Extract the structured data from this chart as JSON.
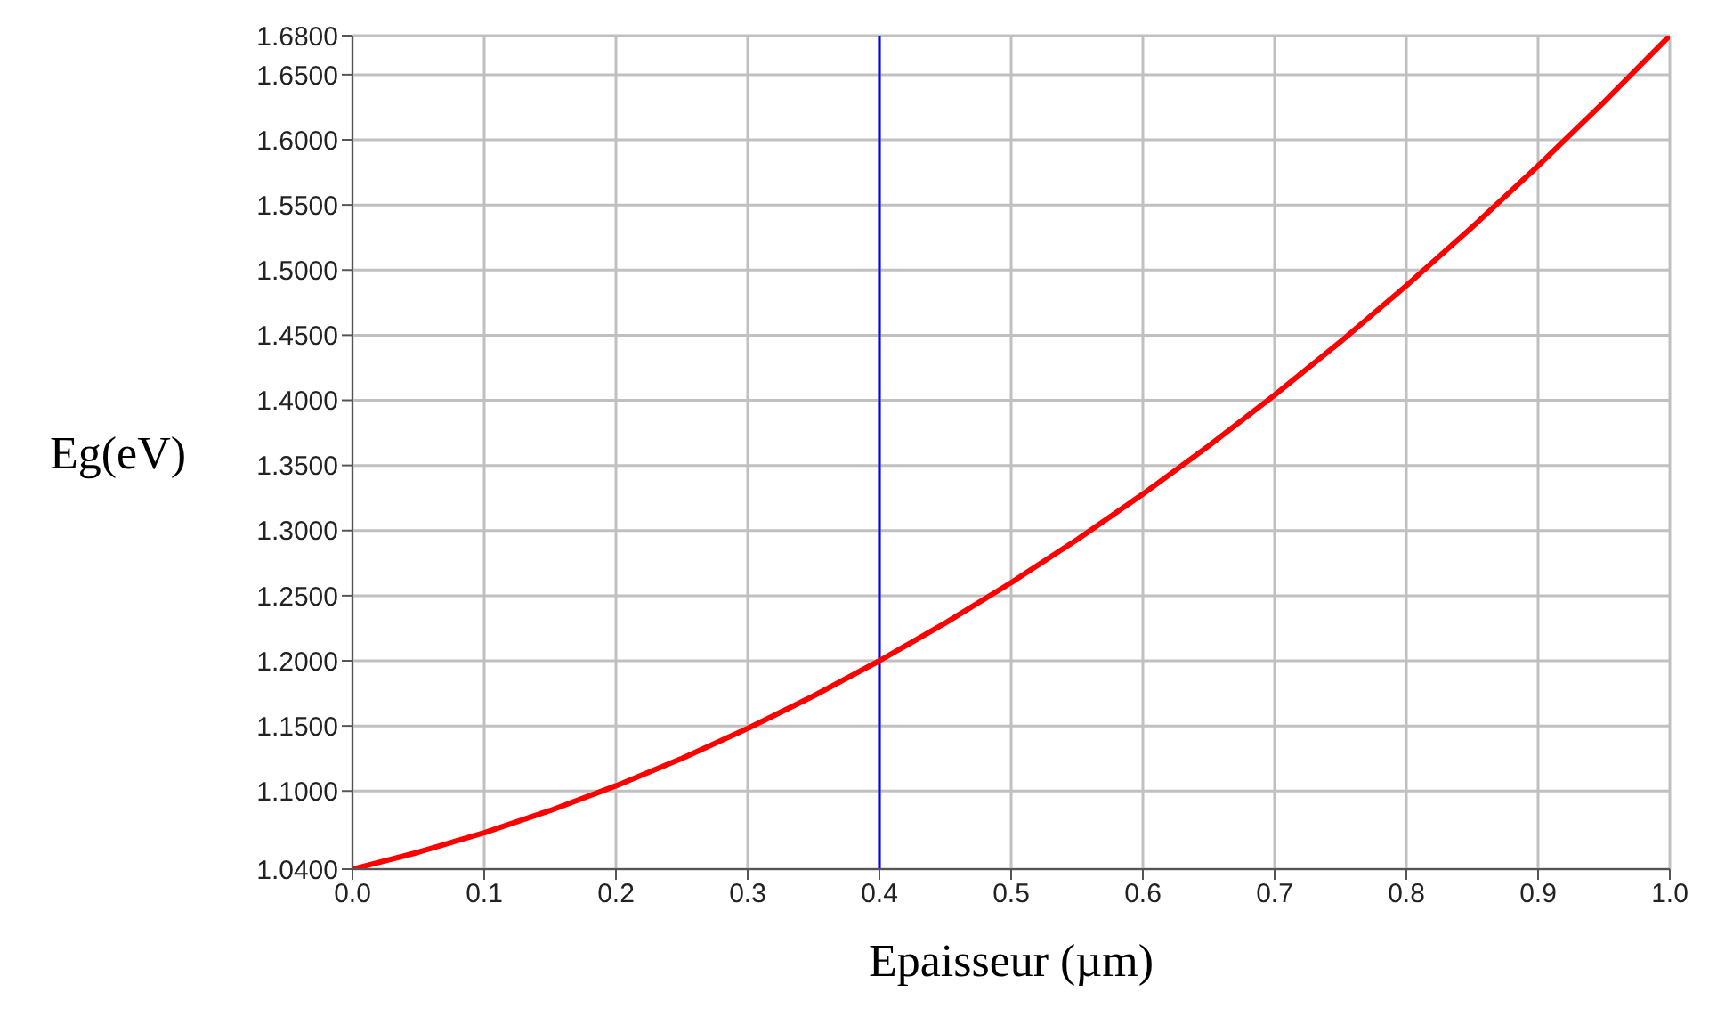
{
  "chart_data": {
    "type": "line",
    "xlabel": "Epaisseur (µm)",
    "ylabel": "Eg(eV)",
    "x": [
      0,
      0.05,
      0.1,
      0.15,
      0.2,
      0.25,
      0.3,
      0.35,
      0.4,
      0.45,
      0.5,
      0.55,
      0.6,
      0.65,
      0.7,
      0.75,
      0.8,
      0.85,
      0.9,
      0.95,
      1.0
    ],
    "series": [
      {
        "color": "#ff0000",
        "values": [
          1.04,
          1.053,
          1.068,
          1.085,
          1.104,
          1.125,
          1.148,
          1.173,
          1.2,
          1.229,
          1.26,
          1.293,
          1.328,
          1.365,
          1.404,
          1.445,
          1.488,
          1.533,
          1.58,
          1.629,
          1.68
        ]
      }
    ],
    "xlim": [
      0,
      1
    ],
    "xticks": [
      {
        "value": 0,
        "label": "0.0"
      },
      0.1,
      0.2,
      0.3,
      0.4,
      0.5,
      0.6,
      0.7,
      0.8,
      0.9,
      {
        "value": 1,
        "label": "1.0"
      }
    ],
    "ylim": [
      1.04,
      1.68
    ],
    "yticks": [
      {
        "value": 1.04,
        "label": "1.0400"
      },
      {
        "value": 1.1,
        "label": "1.1000"
      },
      {
        "value": 1.15,
        "label": "1.1500"
      },
      {
        "value": 1.2,
        "label": "1.2000"
      },
      {
        "value": 1.25,
        "label": "1.2500"
      },
      {
        "value": 1.3,
        "label": "1.3000"
      },
      {
        "value": 1.35,
        "label": "1.3500"
      },
      {
        "value": 1.4,
        "label": "1.4000"
      },
      {
        "value": 1.45,
        "label": "1.4500"
      },
      {
        "value": 1.5,
        "label": "1.5000"
      },
      {
        "value": 1.55,
        "label": "1.5500"
      },
      {
        "value": 1.6,
        "label": "1.6000"
      },
      {
        "value": 1.65,
        "label": "1.6500"
      },
      {
        "value": 1.68,
        "label": "1.6800"
      }
    ],
    "ref_lines": [
      {
        "axis": "x",
        "value": 0.4,
        "color": "#0000ff"
      }
    ],
    "grid": true,
    "legend": false,
    "marker": "none",
    "line_style": "solid"
  }
}
